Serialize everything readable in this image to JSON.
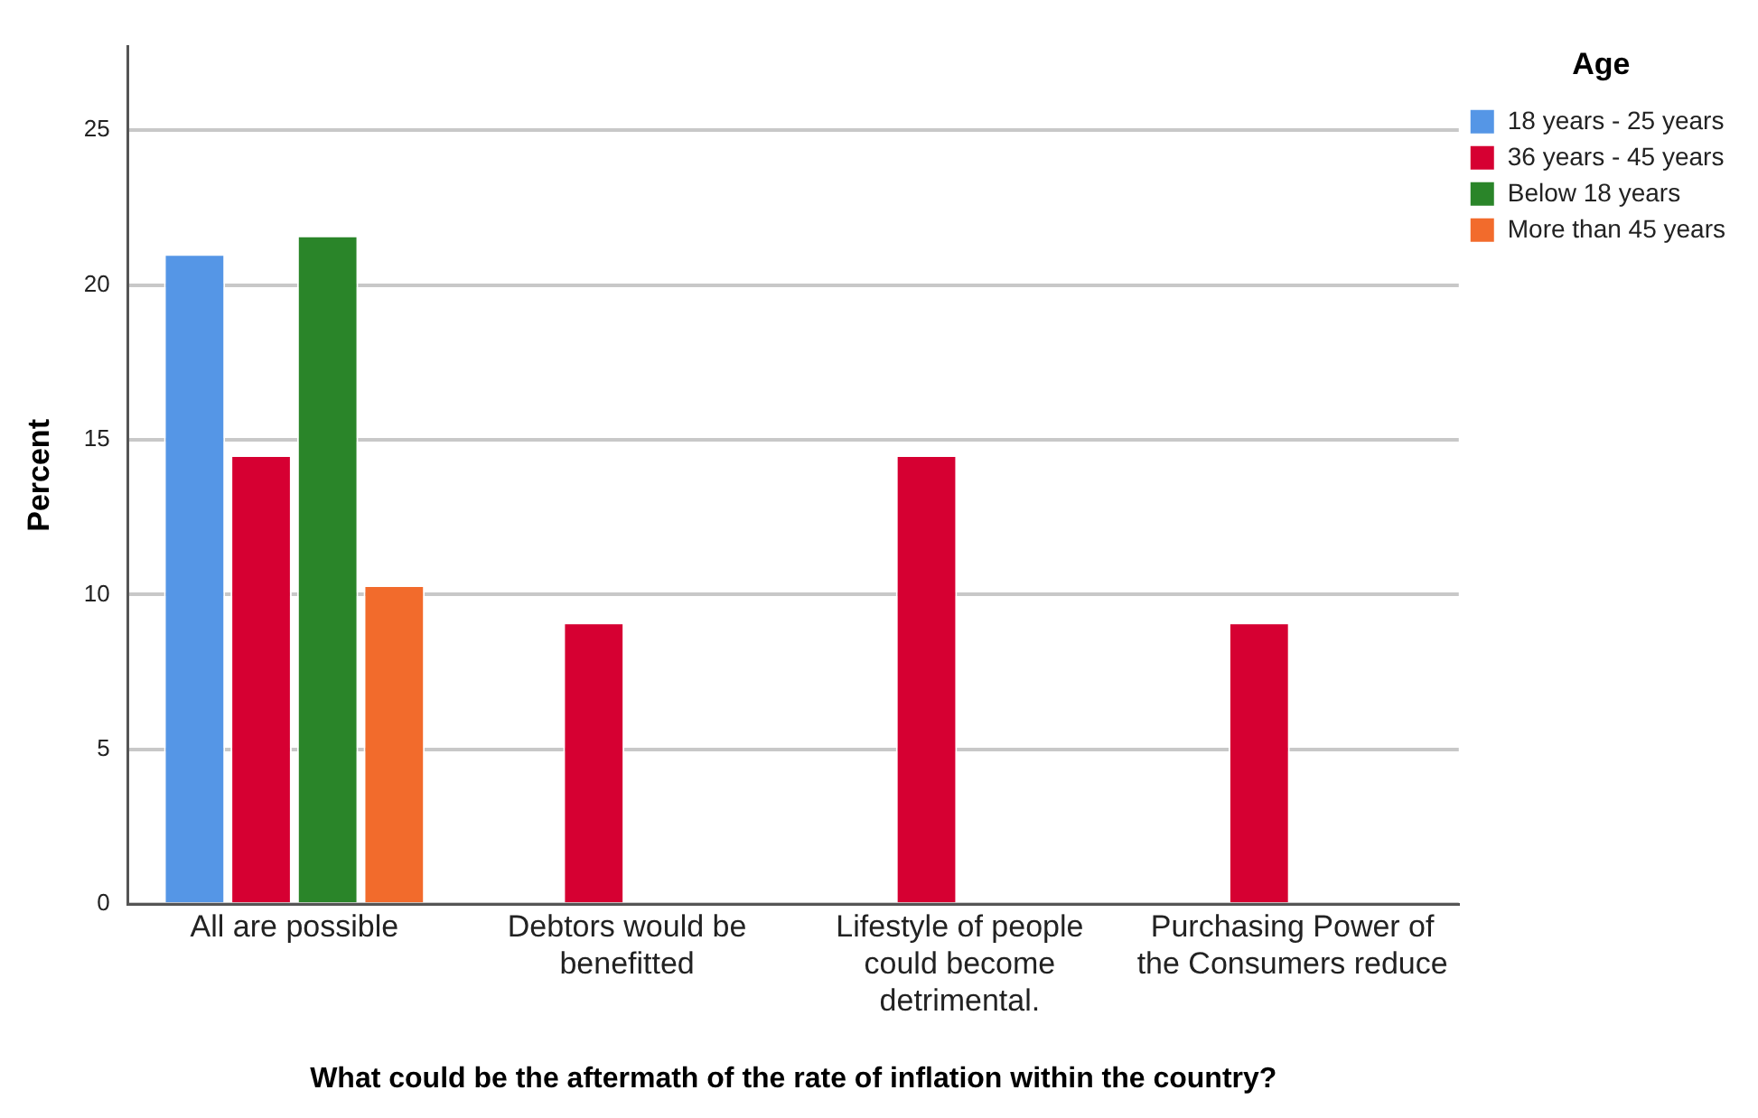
{
  "chart_data": {
    "type": "bar",
    "xlabel": "What could be the aftermath of the rate of inflation within the country?",
    "ylabel": "Percent",
    "legend_title": "Age",
    "categories": [
      "All are possible",
      "Debtors would be benefitted",
      "Lifestyle of people could become detrimental.",
      "Purchasing Power of the Consumers reduce"
    ],
    "series": [
      {
        "name": "18 years - 25 years",
        "color": "#5596e6",
        "values": [
          21.0,
          null,
          null,
          null
        ]
      },
      {
        "name": "36 years - 45 years",
        "color": "#d60032",
        "values": [
          14.5,
          9.1,
          14.5,
          9.1
        ]
      },
      {
        "name": "Below 18 years",
        "color": "#2a8529",
        "values": [
          21.6,
          null,
          null,
          null
        ]
      },
      {
        "name": "More than 45 years",
        "color": "#f26b2c",
        "values": [
          10.3,
          null,
          null,
          null
        ]
      }
    ],
    "ylim": [
      0,
      27.7
    ],
    "yticks": [
      0,
      5,
      10,
      15,
      20,
      25
    ],
    "grid": "y",
    "legend": "top right"
  }
}
